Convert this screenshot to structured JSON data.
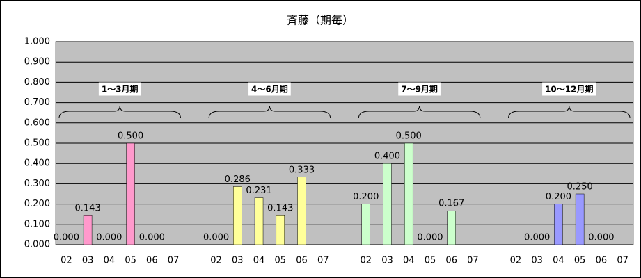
{
  "chart_data": {
    "type": "bar",
    "title": "斉藤（期毎）",
    "ylim": [
      0,
      1
    ],
    "yticks": [
      {
        "value": 0,
        "label": "0.000"
      },
      {
        "value": 0.1,
        "label": "0.100"
      },
      {
        "value": 0.2,
        "label": "0.200"
      },
      {
        "value": 0.3,
        "label": "0.300"
      },
      {
        "value": 0.4,
        "label": "0.400"
      },
      {
        "value": 0.5,
        "label": "0.500"
      },
      {
        "value": 0.6,
        "label": "0.600"
      },
      {
        "value": 0.7,
        "label": "0.700"
      },
      {
        "value": 0.8,
        "label": "0.800"
      },
      {
        "value": 0.9,
        "label": "0.900"
      },
      {
        "value": 1,
        "label": "1.000"
      }
    ],
    "grid": true,
    "groups": [
      {
        "name": "1～3月期",
        "color": "#ff99cc",
        "categories": [
          "02",
          "03",
          "04",
          "05",
          "06",
          "07"
        ],
        "values": [
          0,
          0.143,
          0,
          0.5,
          0,
          null
        ],
        "value_labels": [
          "0.000",
          "0.143",
          "0.000",
          "0.500",
          "0.000",
          null
        ]
      },
      {
        "name": "4～6月期",
        "color": "#ffff99",
        "categories": [
          "02",
          "03",
          "04",
          "05",
          "06",
          "07"
        ],
        "values": [
          0,
          0.286,
          0.231,
          0.143,
          0.333,
          null
        ],
        "value_labels": [
          "0.000",
          "0.286",
          "0.231",
          "0.143",
          "0.333",
          null
        ]
      },
      {
        "name": "7～9月期",
        "color": "#ccffcc",
        "categories": [
          "02",
          "03",
          "04",
          "05",
          "06",
          "07"
        ],
        "values": [
          0.2,
          0.4,
          0.5,
          0,
          0.167,
          null
        ],
        "value_labels": [
          "0.200",
          "0.400",
          "0.500",
          "0.000",
          "0.167",
          null
        ]
      },
      {
        "name": "10～12月期",
        "color": "#9999ff",
        "categories": [
          "02",
          "03",
          "04",
          "05",
          "06",
          "07"
        ],
        "values": [
          null,
          0,
          0.2,
          0.25,
          0,
          null
        ],
        "value_labels": [
          null,
          "0.000",
          "0.200",
          "0.250",
          "0.000",
          null
        ]
      }
    ]
  }
}
